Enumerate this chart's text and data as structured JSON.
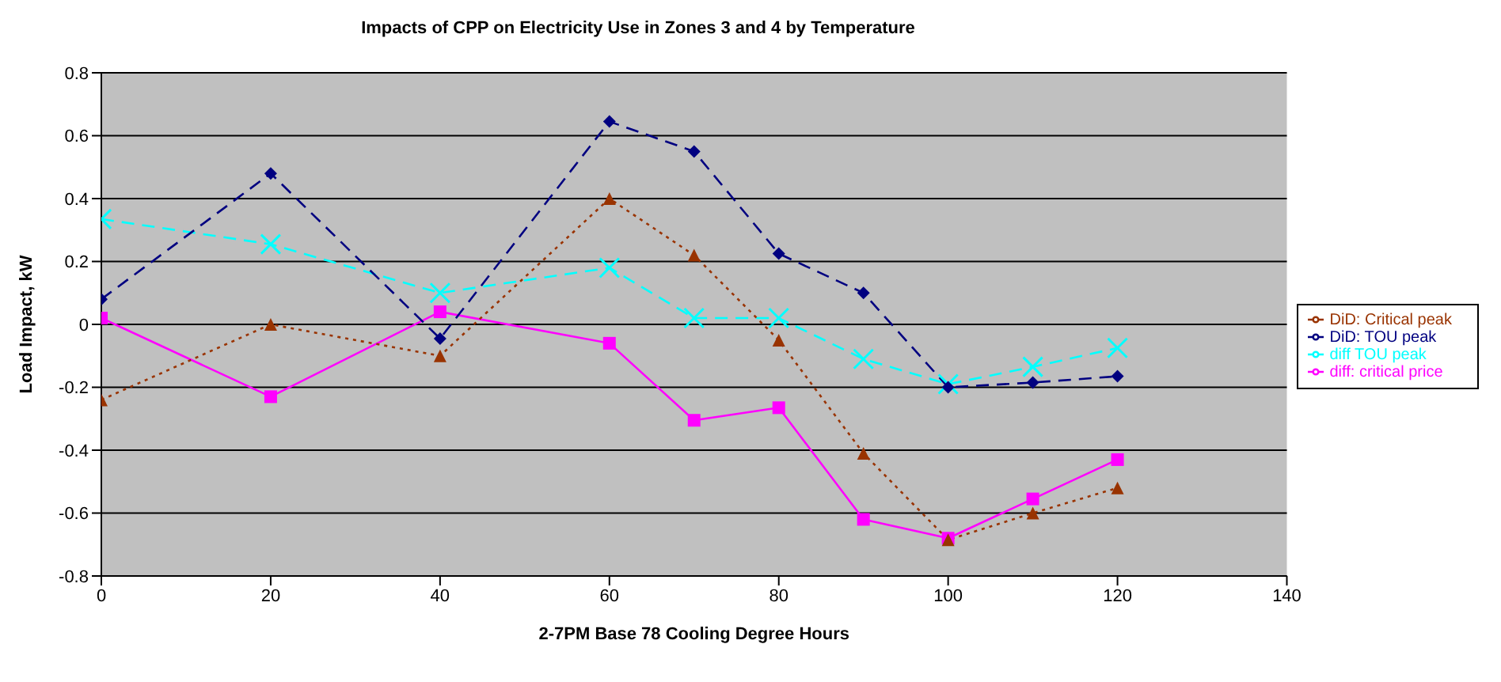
{
  "chart_data": {
    "type": "line",
    "title": "Impacts of CPP on Electricity Use in Zones 3 and 4 by Temperature",
    "xlabel": "2-7PM Base 78 Cooling Degree Hours",
    "ylabel": "Load Impact, kW",
    "x": [
      0,
      20,
      40,
      60,
      70,
      80,
      90,
      100,
      110,
      120
    ],
    "xlim": [
      0,
      140
    ],
    "xticks": [
      0,
      20,
      40,
      60,
      80,
      100,
      120,
      140
    ],
    "ylim": [
      -0.8,
      0.8
    ],
    "yticks": [
      -0.8,
      -0.6,
      -0.4,
      -0.2,
      0,
      0.2,
      0.4,
      0.6,
      0.8
    ],
    "grid": "y",
    "legend": "right",
    "series": [
      {
        "name": "diff: critical price",
        "color": "#ff00ff",
        "marker": "square",
        "line_style": "solid",
        "values": [
          0.02,
          -0.23,
          0.04,
          -0.06,
          -0.305,
          -0.265,
          -0.62,
          -0.68,
          -0.555,
          -0.43
        ]
      },
      {
        "name": "diff TOU peak",
        "color": "#00ffff",
        "marker": "cross",
        "line_style": "dashed",
        "values": [
          0.335,
          0.255,
          0.1,
          0.18,
          0.02,
          0.02,
          -0.11,
          -0.19,
          -0.135,
          -0.075
        ]
      },
      {
        "name": "DiD: TOU peak",
        "color": "#000080",
        "marker": "diamond",
        "line_style": "dashed",
        "values": [
          0.08,
          0.48,
          -0.045,
          0.645,
          0.55,
          0.225,
          0.1,
          -0.2,
          -0.185,
          -0.165
        ]
      },
      {
        "name": "DiD: Critical peak",
        "color": "#993300",
        "marker": "triangle",
        "line_style": "dotted",
        "values": [
          -0.24,
          0,
          -0.1,
          0.4,
          0.22,
          -0.05,
          -0.41,
          -0.685,
          -0.6,
          -0.52
        ]
      }
    ]
  }
}
